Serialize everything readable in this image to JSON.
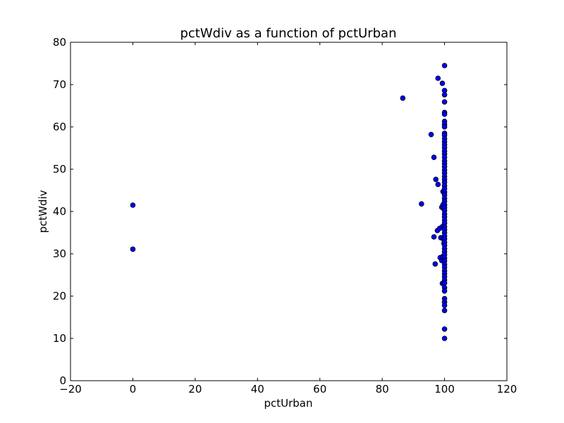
{
  "chart_data": {
    "type": "scatter",
    "title": "pctWdiv as a function of pctUrban",
    "xlabel": "pctUrban",
    "ylabel": "pctWdiv",
    "xlim": [
      -20,
      120
    ],
    "ylim": [
      0,
      80
    ],
    "xticks": [
      -20,
      0,
      20,
      40,
      60,
      80,
      100,
      120
    ],
    "yticks": [
      0,
      10,
      20,
      30,
      40,
      50,
      60,
      70,
      80
    ],
    "xtick_labels": [
      "−20",
      "0",
      "20",
      "40",
      "60",
      "80",
      "100",
      "120"
    ],
    "ytick_labels": [
      "0",
      "10",
      "20",
      "30",
      "40",
      "50",
      "60",
      "70",
      "80"
    ],
    "grid": false,
    "legend": false,
    "marker_color": "#0000ff",
    "series": [
      {
        "points": [
          [
            0,
            41.5
          ],
          [
            0,
            31.1
          ],
          [
            86.6,
            66.8
          ],
          [
            92.6,
            41.8
          ],
          [
            95.7,
            58.2
          ],
          [
            96.6,
            52.8
          ],
          [
            96.6,
            34.0
          ],
          [
            97.0,
            27.6
          ],
          [
            97.2,
            47.6
          ],
          [
            97.7,
            35.5
          ],
          [
            97.9,
            71.5
          ],
          [
            97.9,
            46.4
          ],
          [
            98.4,
            36.0
          ],
          [
            98.6,
            29.1
          ],
          [
            98.8,
            33.8
          ],
          [
            99.1,
            41.0
          ],
          [
            99.1,
            28.4
          ],
          [
            99.3,
            70.3
          ],
          [
            99.3,
            36.4
          ],
          [
            99.3,
            23.0
          ],
          [
            99.5,
            44.7
          ],
          [
            99.5,
            41.6
          ],
          [
            99.5,
            33.6
          ],
          [
            99.5,
            29.4
          ],
          [
            99.8,
            40.6
          ],
          [
            99.8,
            32.5
          ],
          [
            100,
            74.5
          ],
          [
            100,
            68.6
          ],
          [
            100,
            67.6
          ],
          [
            100,
            65.9
          ],
          [
            100,
            63.4
          ],
          [
            100,
            63.0
          ],
          [
            100,
            61.3
          ],
          [
            100,
            60.6
          ],
          [
            100,
            60.0
          ],
          [
            100,
            58.5
          ],
          [
            100,
            58.0
          ],
          [
            100,
            57.2
          ],
          [
            100,
            56.5
          ],
          [
            100,
            55.8
          ],
          [
            100,
            55.1
          ],
          [
            100,
            54.3
          ],
          [
            100,
            53.6
          ],
          [
            100,
            52.8
          ],
          [
            100,
            52.0
          ],
          [
            100,
            51.3
          ],
          [
            100,
            50.6
          ],
          [
            100,
            49.8
          ],
          [
            100,
            49.1
          ],
          [
            100,
            48.3
          ],
          [
            100,
            47.6
          ],
          [
            100,
            46.9
          ],
          [
            100,
            46.1
          ],
          [
            100,
            45.4
          ],
          [
            100,
            44.6
          ],
          [
            100,
            43.9
          ],
          [
            100,
            43.1
          ],
          [
            100,
            42.4
          ],
          [
            100,
            41.6
          ],
          [
            100,
            40.9
          ],
          [
            100,
            40.2
          ],
          [
            100,
            39.4
          ],
          [
            100,
            38.7
          ],
          [
            100,
            37.9
          ],
          [
            100,
            37.2
          ],
          [
            100,
            36.4
          ],
          [
            100,
            35.7
          ],
          [
            100,
            35.0
          ],
          [
            100,
            34.2
          ],
          [
            100,
            33.5
          ],
          [
            100,
            32.7
          ],
          [
            100,
            32.0
          ],
          [
            100,
            31.2
          ],
          [
            100,
            30.5
          ],
          [
            100,
            29.8
          ],
          [
            100,
            29.0
          ],
          [
            100,
            28.3
          ],
          [
            100,
            27.5
          ],
          [
            100,
            26.8
          ],
          [
            100,
            26.0
          ],
          [
            100,
            25.3
          ],
          [
            100,
            24.6
          ],
          [
            100,
            23.8
          ],
          [
            100,
            23.1
          ],
          [
            100,
            22.0
          ],
          [
            100,
            21.2
          ],
          [
            100,
            19.4
          ],
          [
            100,
            18.6
          ],
          [
            100,
            17.8
          ],
          [
            100,
            16.6
          ],
          [
            100,
            12.2
          ],
          [
            100,
            10.0
          ]
        ]
      }
    ]
  }
}
